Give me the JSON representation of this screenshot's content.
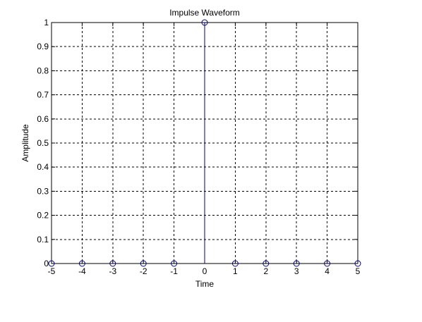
{
  "chart_data": {
    "type": "stem",
    "title": "Impulse Waveform",
    "xlabel": "Time",
    "ylabel": "Amplitude",
    "xlim": [
      -5,
      5
    ],
    "ylim": [
      0,
      1
    ],
    "grid": true,
    "x": [
      -5,
      -4,
      -3,
      -2,
      -1,
      0,
      1,
      2,
      3,
      4,
      5
    ],
    "y": [
      0,
      0,
      0,
      0,
      0,
      1,
      0,
      0,
      0,
      0,
      0
    ],
    "x_ticks": [
      -5,
      -4,
      -3,
      -2,
      -1,
      0,
      1,
      2,
      3,
      4,
      5
    ],
    "y_ticks": [
      0,
      0.1,
      0.2,
      0.3,
      0.4,
      0.5,
      0.6,
      0.7,
      0.8,
      0.9,
      1
    ],
    "x_tick_labels": [
      "-5",
      "-4",
      "-3",
      "-2",
      "-1",
      "0",
      "1",
      "2",
      "3",
      "4",
      "5"
    ],
    "y_tick_labels": [
      "0",
      "0.1",
      "0.2",
      "0.3",
      "0.4",
      "0.5",
      "0.6",
      "0.7",
      "0.8",
      "0.9",
      "1"
    ],
    "colors": {
      "series": "#00007f",
      "axes": "#000000",
      "grid": "#000000",
      "background": "#ffffff"
    }
  }
}
